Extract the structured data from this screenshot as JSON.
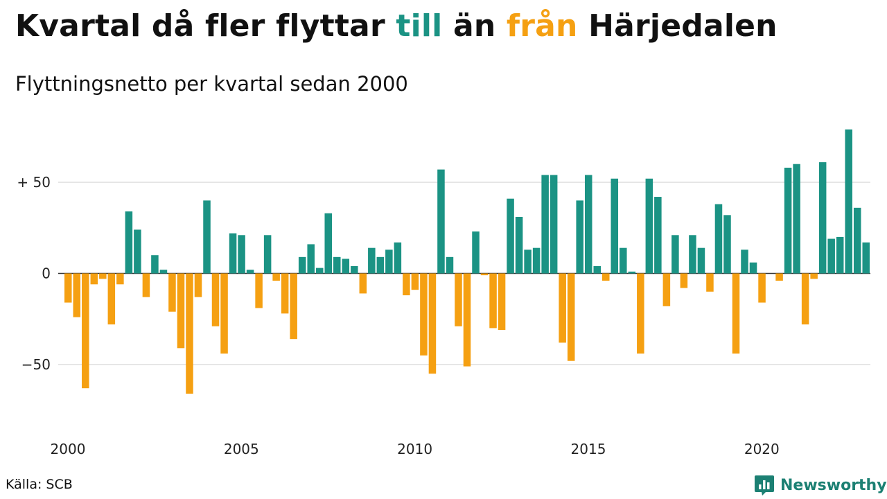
{
  "title": {
    "part1": "Kvartal då fler flyttar ",
    "highlight_in": "till",
    "part2": " än ",
    "highlight_out": "från",
    "part3": " Härjedalen"
  },
  "subtitle": "Flyttningsnetto per kvartal sedan 2000",
  "source": "Källa: SCB",
  "brand": "Newsworthy",
  "colors": {
    "positive": "#1b9384",
    "negative": "#f5a012",
    "grid": "#dddddd",
    "axis": "#333333",
    "brand": "#1c8073"
  },
  "chart_data": {
    "type": "bar",
    "x_start": "2000 Q1",
    "x_tick_labels": [
      "2000",
      "2005",
      "2010",
      "2015",
      "2020"
    ],
    "y_tick_labels": [
      "+ 50",
      "0",
      "−50"
    ],
    "y_ticks": [
      50,
      0,
      -50
    ],
    "ylim": [
      -80,
      82
    ],
    "grid": true,
    "values": [
      -16,
      -24,
      -63,
      -6,
      -3,
      -28,
      -6,
      34,
      24,
      -13,
      10,
      2,
      -21,
      -41,
      -66,
      -13,
      40,
      -29,
      -44,
      22,
      21,
      2,
      -19,
      21,
      -4,
      -22,
      -36,
      9,
      16,
      3,
      33,
      9,
      8,
      4,
      -11,
      14,
      9,
      13,
      17,
      -12,
      -9,
      -45,
      -55,
      57,
      9,
      -29,
      -51,
      23,
      -1,
      -30,
      -31,
      41,
      31,
      13,
      14,
      54,
      54,
      -38,
      -48,
      40,
      54,
      4,
      -4,
      52,
      14,
      1,
      -44,
      52,
      42,
      -18,
      21,
      -8,
      21,
      14,
      -10,
      38,
      32,
      -44,
      13,
      6,
      -16,
      0,
      -4,
      58,
      60,
      -28,
      -3,
      61,
      19,
      20,
      79,
      36,
      17
    ]
  }
}
